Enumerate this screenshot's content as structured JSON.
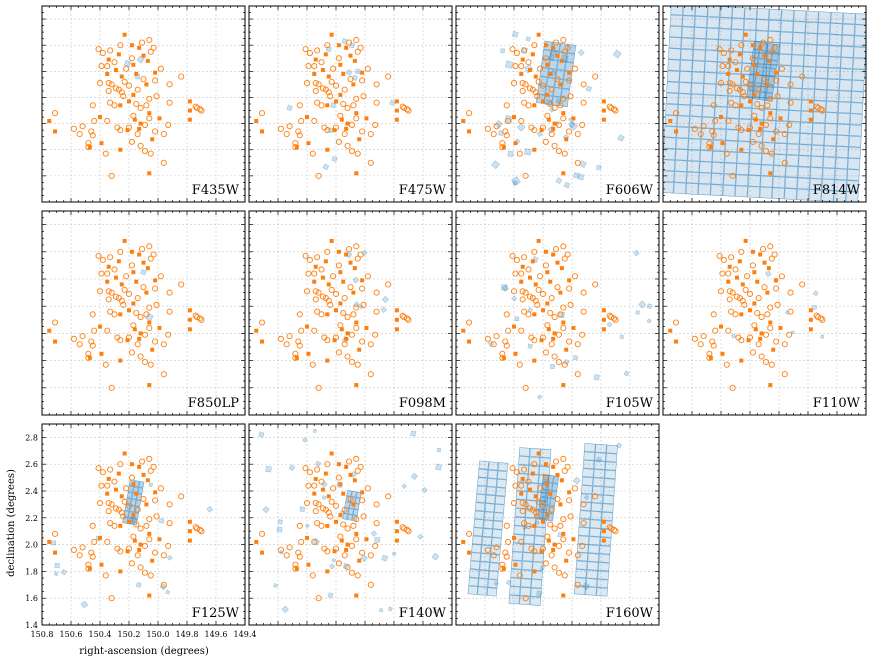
{
  "chart_data": {
    "type": "scatter",
    "xlabel": "right-ascension (degrees)",
    "ylabel": "declination (degrees)",
    "xlim": [
      150.8,
      149.4
    ],
    "ylim": [
      1.4,
      2.9
    ],
    "xticks": [
      150.8,
      150.6,
      150.4,
      150.2,
      150.0,
      149.8,
      149.6,
      149.4
    ],
    "yticks": [
      1.4,
      1.6,
      1.8,
      2.0,
      2.2,
      2.4,
      2.6,
      2.8
    ],
    "xtick_labels": [
      "150.8",
      "150.6",
      "150.4",
      "150.2",
      "150.0",
      "149.8",
      "149.6",
      "149.4"
    ],
    "ytick_labels": [
      "1.4",
      "1.6",
      "1.8",
      "2.0",
      "2.2",
      "2.4",
      "2.6",
      "2.8"
    ],
    "grid": true,
    "colors": {
      "points": "#ff7f0e",
      "coverage": "#1f77b4"
    },
    "open_circles": [
      [
        150.41,
        2.57
      ],
      [
        150.38,
        2.54
      ],
      [
        150.33,
        2.56
      ],
      [
        150.11,
        2.62
      ],
      [
        150.06,
        2.64
      ],
      [
        150.03,
        2.58
      ],
      [
        150.05,
        2.55
      ],
      [
        150.3,
        2.47
      ],
      [
        150.22,
        2.42
      ],
      [
        150.39,
        2.44
      ],
      [
        150.35,
        2.44
      ],
      [
        149.98,
        2.42
      ],
      [
        149.84,
        2.36
      ],
      [
        150.4,
        2.31
      ],
      [
        150.34,
        2.31
      ],
      [
        150.32,
        2.3
      ],
      [
        150.27,
        2.26
      ],
      [
        150.29,
        2.27
      ],
      [
        150.23,
        2.32
      ],
      [
        150.2,
        2.29
      ],
      [
        150.25,
        2.24
      ],
      [
        150.02,
        2.33
      ],
      [
        150.34,
        2.25
      ],
      [
        150.33,
        2.16
      ],
      [
        150.3,
        2.14
      ],
      [
        150.15,
        2.15
      ],
      [
        150.12,
        2.12
      ],
      [
        150.06,
        2.19
      ],
      [
        150.08,
        2.14
      ],
      [
        149.92,
        2.16
      ],
      [
        150.45,
        2.14
      ],
      [
        149.74,
        2.13
      ],
      [
        149.71,
        2.11
      ],
      [
        149.73,
        2.12
      ],
      [
        149.7,
        2.1
      ],
      [
        150.71,
        2.08
      ],
      [
        150.58,
        1.96
      ],
      [
        150.52,
        1.98
      ],
      [
        150.54,
        1.92
      ],
      [
        150.46,
        1.94
      ],
      [
        150.45,
        1.91
      ],
      [
        150.35,
        2.02
      ],
      [
        150.28,
        1.97
      ],
      [
        150.26,
        1.95
      ],
      [
        150.2,
        1.97
      ],
      [
        150.14,
        1.92
      ],
      [
        150.09,
        1.99
      ],
      [
        150.06,
        2.04
      ],
      [
        150.02,
        1.94
      ],
      [
        149.96,
        1.92
      ],
      [
        149.93,
        1.99
      ],
      [
        150.48,
        1.85
      ],
      [
        150.48,
        1.82
      ],
      [
        150.36,
        1.77
      ],
      [
        150.12,
        1.83
      ],
      [
        150.09,
        1.79
      ],
      [
        150.05,
        1.77
      ],
      [
        150.18,
        1.86
      ],
      [
        149.96,
        1.7
      ],
      [
        150.32,
        1.6
      ],
      [
        150.24,
        2.21
      ],
      [
        150.14,
        2.26
      ],
      [
        150.01,
        2.21
      ],
      [
        150.1,
        2.34
      ],
      [
        150.18,
        2.5
      ],
      [
        150.26,
        2.6
      ],
      [
        149.92,
        2.3
      ],
      [
        150.44,
        2.02
      ],
      [
        150.17,
        2.06
      ]
    ],
    "filled_squares": [
      [
        150.23,
        2.68
      ],
      [
        150.18,
        2.6
      ],
      [
        150.13,
        2.58
      ],
      [
        150.1,
        2.52
      ],
      [
        150.34,
        2.49
      ],
      [
        150.27,
        2.53
      ],
      [
        150.17,
        2.45
      ],
      [
        150.07,
        2.48
      ],
      [
        150.29,
        2.41
      ],
      [
        150.15,
        2.38
      ],
      [
        150.02,
        2.39
      ],
      [
        150.25,
        2.36
      ],
      [
        150.08,
        2.3
      ],
      [
        150.17,
        2.22
      ],
      [
        150.26,
        2.14
      ],
      [
        150.06,
        2.08
      ],
      [
        149.78,
        2.17
      ],
      [
        149.78,
        2.1
      ],
      [
        150.75,
        2.02
      ],
      [
        150.71,
        1.94
      ],
      [
        150.16,
        2.03
      ],
      [
        149.78,
        2.03
      ],
      [
        150.21,
        1.95
      ],
      [
        150.12,
        2.0
      ],
      [
        149.99,
        2.04
      ],
      [
        150.4,
        2.05
      ],
      [
        150.04,
        1.88
      ],
      [
        150.26,
        1.8
      ],
      [
        150.47,
        1.82
      ],
      [
        150.39,
        1.85
      ],
      [
        150.06,
        1.62
      ],
      [
        150.2,
        2.17
      ],
      [
        150.35,
        2.38
      ],
      [
        150.13,
        1.96
      ]
    ],
    "panels": [
      {
        "name": "F435W",
        "coverage": [
          [
            150.12,
            2.49,
            0.035,
            30
          ],
          [
            150.21,
            2.46,
            0.035,
            20
          ],
          [
            150.14,
            2.36,
            0.03,
            10
          ]
        ]
      },
      {
        "name": "F475W",
        "coverage": [
          [
            150.25,
            2.57,
            0.03,
            20
          ],
          [
            150.14,
            2.63,
            0.03,
            20
          ],
          [
            150.09,
            2.6,
            0.03,
            10
          ],
          [
            150.11,
            2.39,
            0.03,
            30
          ],
          [
            150.07,
            2.35,
            0.03,
            20
          ],
          [
            150.22,
            2.14,
            0.03,
            15
          ],
          [
            149.81,
            2.16,
            0.03,
            20
          ],
          [
            150.52,
            2.12,
            0.03,
            20
          ],
          [
            150.24,
            1.95,
            0.03,
            10
          ],
          [
            150.21,
            1.73,
            0.03,
            20
          ],
          [
            150.27,
            1.67,
            0.03,
            30
          ],
          [
            150.05,
            2.4,
            0.03,
            10
          ]
        ]
      }
    ]
  },
  "panel_labels": [
    "F435W",
    "F475W",
    "F606W",
    "F814W",
    "F850LP",
    "F098M",
    "F105W",
    "F110W",
    "F125W",
    "F140W",
    "F160W"
  ]
}
